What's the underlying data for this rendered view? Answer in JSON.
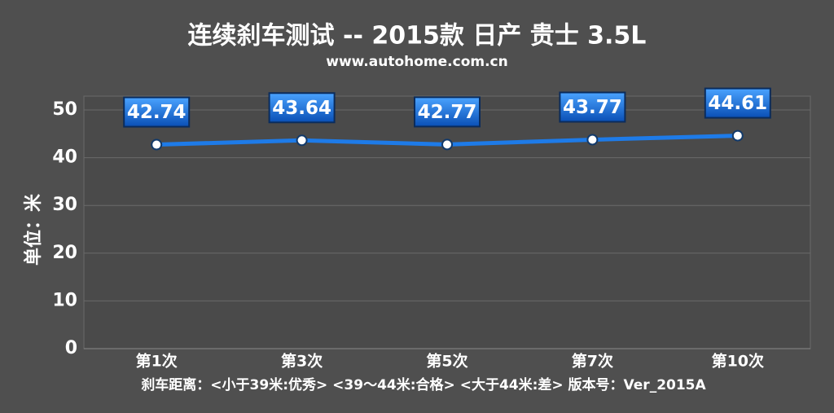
{
  "chart_data": {
    "type": "line",
    "title": "连续刹车测试 -- 2015款 日产 贵士 3.5L",
    "subtitle": "www.autohome.com.cn",
    "y_label": "单位：米",
    "note": "刹车距离：<小于39米:优秀>  <39～44米:合格>  <大于44米:差>    版本号：Ver_2015A",
    "categories": [
      "第1次",
      "第3次",
      "第5次",
      "第7次",
      "第10次"
    ],
    "values": [
      42.74,
      43.64,
      42.77,
      43.77,
      44.61
    ],
    "color": "#1e7be8",
    "ylim": [
      0,
      50
    ],
    "yticks": [
      0,
      10,
      20,
      30,
      40,
      50
    ],
    "grid": true
  }
}
